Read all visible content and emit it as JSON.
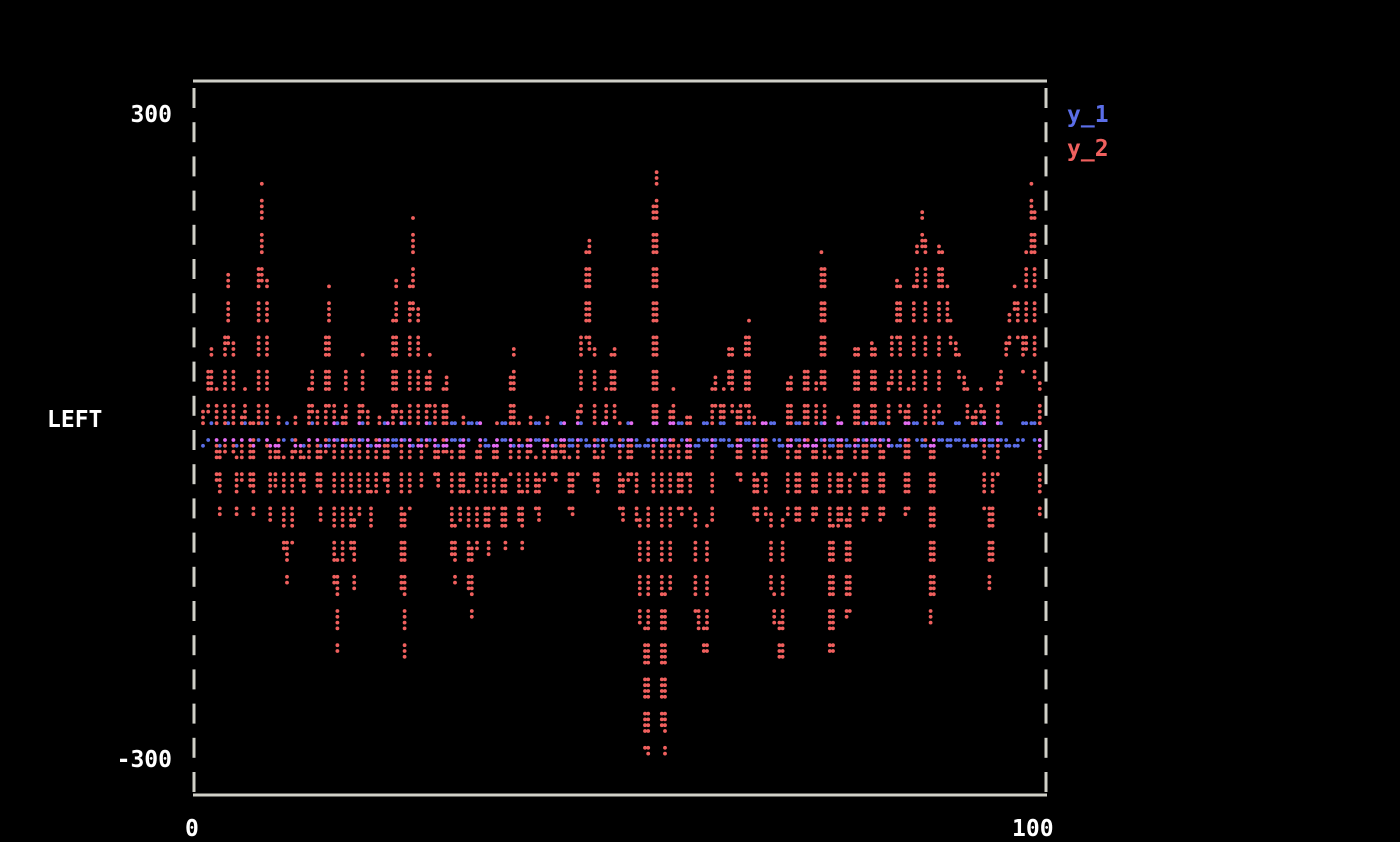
{
  "chart_data": {
    "type": "line",
    "title": "",
    "xlabel": "",
    "ylabel": "LEFT",
    "xlim": [
      0,
      100
    ],
    "ylim": [
      -300,
      300
    ],
    "xticks": [
      "0",
      "100"
    ],
    "yticks": [
      "300",
      "-300"
    ],
    "grid": false,
    "legend_placement": "right",
    "x": [
      0,
      1,
      2,
      3,
      4,
      5,
      6,
      7,
      8,
      9,
      10,
      11,
      12,
      13,
      14,
      15,
      16,
      17,
      18,
      19,
      20,
      21,
      22,
      23,
      24,
      25,
      26,
      27,
      28,
      29,
      30,
      31,
      32,
      33,
      34,
      35,
      36,
      37,
      38,
      39,
      40,
      41,
      42,
      43,
      44,
      45,
      46,
      47,
      48,
      49,
      50,
      51,
      52,
      53,
      54,
      55,
      56,
      57,
      58,
      59,
      60,
      61,
      62,
      63,
      64,
      65,
      66,
      67,
      68,
      69,
      70,
      71,
      72,
      73,
      74,
      75,
      76,
      77,
      78,
      79,
      80,
      81,
      82,
      83,
      84,
      85,
      86,
      87,
      88,
      89,
      90,
      91,
      92,
      93,
      94,
      95,
      96,
      97,
      98,
      99,
      100
    ],
    "series": [
      {
        "name": "y_1",
        "color": "#5b6ee8",
        "values": [
          -10,
          5,
          -10,
          5,
          -10,
          5,
          -10,
          5,
          -10,
          -10,
          5,
          -10,
          -10,
          5,
          -10,
          -10,
          5,
          -10,
          -10,
          5,
          -10,
          -10,
          5,
          -10,
          5,
          -10,
          -10,
          5,
          -10,
          -10,
          5,
          -10,
          5,
          5,
          -10,
          -10,
          5,
          -10,
          -10,
          -10,
          5,
          -10,
          -10,
          5,
          -10,
          5,
          -10,
          -10,
          5,
          -10,
          -10,
          5,
          -10,
          -10,
          5,
          -10,
          5,
          5,
          -10,
          -10,
          5,
          -10,
          5,
          -10,
          -10,
          5,
          -10,
          5,
          5,
          -10,
          -10,
          5,
          -10,
          -10,
          5,
          -10,
          5,
          -10,
          -10,
          5,
          -10,
          5,
          -10,
          -10,
          5,
          5,
          -10,
          -10,
          5,
          -10,
          5,
          -10,
          -10,
          5,
          -10,
          5,
          -10,
          -10,
          5,
          5,
          -10
        ]
      },
      {
        "name": "y_2",
        "color": "#f0605e",
        "values": [
          5,
          76,
          -77,
          146,
          -75,
          40,
          -75,
          227,
          -80,
          15,
          -137,
          10,
          -60,
          60,
          -80,
          132,
          -200,
          60,
          -145,
          70,
          -90,
          15,
          -60,
          137,
          -207,
          200,
          -50,
          70,
          -50,
          50,
          -140,
          10,
          -170,
          5,
          -110,
          3,
          -105,
          75,
          -105,
          15,
          -80,
          10,
          -40,
          5,
          -75,
          30,
          180,
          -60,
          15,
          75,
          -80,
          5,
          -90,
          -300,
          242,
          -300,
          40,
          -70,
          15,
          -170,
          -203,
          50,
          10,
          80,
          -40,
          100,
          -80,
          5,
          -150,
          -207,
          50,
          -80,
          60,
          -80,
          163,
          -205,
          15,
          -170,
          80,
          -80,
          85,
          -80,
          40,
          143,
          -75,
          130,
          206,
          -175,
          170,
          105,
          70,
          40,
          -5,
          40,
          -142,
          40,
          80,
          135,
          60,
          232,
          -70
        ]
      }
    ],
    "overlap_color": "#e46cf2",
    "frame_color": "#d0d0c8"
  }
}
